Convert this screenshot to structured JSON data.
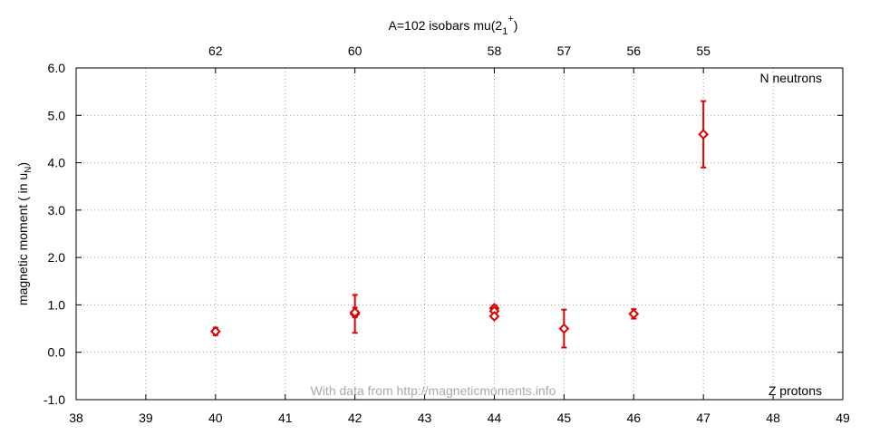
{
  "chart_data": {
    "type": "scatter",
    "title_main": "A=102 isobars mu(2",
    "title_sub": "1",
    "title_sup": "+",
    "title_close": ")",
    "ylabel_main": "magnetic moment ( in u",
    "ylabel_sub": "N",
    "ylabel_close": ")",
    "xlim": [
      38,
      49
    ],
    "ylim": [
      -1.0,
      6.0
    ],
    "x_ticks": [
      38,
      39,
      40,
      41,
      42,
      43,
      44,
      45,
      46,
      47,
      48,
      49
    ],
    "y_ticks": [
      -1.0,
      0.0,
      1.0,
      2.0,
      3.0,
      4.0,
      5.0,
      6.0
    ],
    "y_tick_labels": [
      "-1.0",
      "0.0",
      "1.0",
      "2.0",
      "3.0",
      "4.0",
      "5.0",
      "6.0"
    ],
    "top_ticks": [
      {
        "x": 40,
        "label": "62"
      },
      {
        "x": 42,
        "label": "60"
      },
      {
        "x": 44,
        "label": "58"
      },
      {
        "x": 45,
        "label": "57"
      },
      {
        "x": 46,
        "label": "56"
      },
      {
        "x": 47,
        "label": "55"
      }
    ],
    "grid": true,
    "points": [
      {
        "x": 40,
        "y": 0.44,
        "err": 0.08
      },
      {
        "x": 42,
        "y": 0.81,
        "err": 0.4
      },
      {
        "x": 42,
        "y": 0.84,
        "err": 0.1
      },
      {
        "x": 44,
        "y": 0.93,
        "err": 0.06
      },
      {
        "x": 44,
        "y": 0.87,
        "err": 0.06
      },
      {
        "x": 44,
        "y": 0.76,
        "err": 0.05
      },
      {
        "x": 45,
        "y": 0.5,
        "err": 0.4
      },
      {
        "x": 46,
        "y": 0.81,
        "err": 0.1
      },
      {
        "x": 47,
        "y": 4.6,
        "err": 0.7
      }
    ],
    "color": "#dd0000",
    "annotations": {
      "top_right": "N neutrons",
      "bottom_right": "Z protons",
      "watermark": "With data from http://magneticmoments.info"
    }
  }
}
